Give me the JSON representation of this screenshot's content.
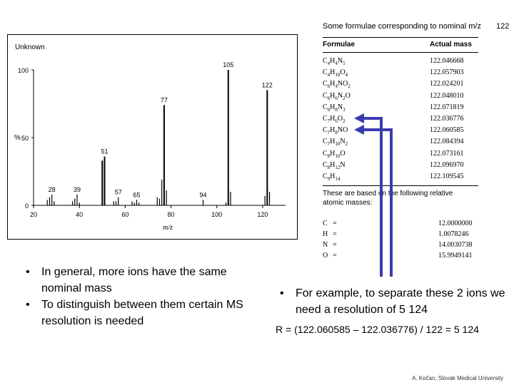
{
  "spectrum": {
    "title": "Unknown",
    "xlabel": "m/z",
    "ylabel": "%",
    "y_ticks": [
      "100",
      "50",
      "0"
    ],
    "x_ticks": [
      "20",
      "40",
      "60",
      "80",
      "100",
      "120"
    ]
  },
  "chart_data": {
    "type": "bar",
    "title": "Unknown",
    "xlabel": "m/z",
    "ylabel": "%",
    "xlim": [
      20,
      130
    ],
    "ylim": [
      0,
      100
    ],
    "peak_labels": [
      "28",
      "39",
      "51",
      "57",
      "65",
      "77",
      "94",
      "105",
      "122"
    ],
    "peaks": [
      {
        "x": 26,
        "y": 4
      },
      {
        "x": 27,
        "y": 6
      },
      {
        "x": 28,
        "y": 8
      },
      {
        "x": 29,
        "y": 3
      },
      {
        "x": 37,
        "y": 3
      },
      {
        "x": 38,
        "y": 5
      },
      {
        "x": 39,
        "y": 8
      },
      {
        "x": 40,
        "y": 2
      },
      {
        "x": 50,
        "y": 33
      },
      {
        "x": 51,
        "y": 36
      },
      {
        "x": 55,
        "y": 3
      },
      {
        "x": 56,
        "y": 3
      },
      {
        "x": 57,
        "y": 6
      },
      {
        "x": 63,
        "y": 3
      },
      {
        "x": 64,
        "y": 2
      },
      {
        "x": 65,
        "y": 4
      },
      {
        "x": 66,
        "y": 2
      },
      {
        "x": 74,
        "y": 6
      },
      {
        "x": 75,
        "y": 5
      },
      {
        "x": 76,
        "y": 19
      },
      {
        "x": 77,
        "y": 74
      },
      {
        "x": 78,
        "y": 11
      },
      {
        "x": 94,
        "y": 4
      },
      {
        "x": 104,
        "y": 2
      },
      {
        "x": 105,
        "y": 100
      },
      {
        "x": 106,
        "y": 10
      },
      {
        "x": 121,
        "y": 7
      },
      {
        "x": 122,
        "y": 85
      },
      {
        "x": 123,
        "y": 10
      }
    ]
  },
  "table": {
    "title": "Some formulae corresponding to nominal m/z",
    "title_value": "122",
    "col_formula": "Formulae",
    "col_mass": "Actual mass",
    "rows": [
      {
        "formula": "C4H4N5",
        "mass": "122.046668"
      },
      {
        "formula": "C4H10O4",
        "mass": "122.057903"
      },
      {
        "formula": "C6H4NO2",
        "mass": "122.024201"
      },
      {
        "formula": "C6H6N2O",
        "mass": "122.048010"
      },
      {
        "formula": "C6H8N3",
        "mass": "122.071819"
      },
      {
        "formula": "C7H6O2",
        "mass": "122.036776"
      },
      {
        "formula": "C7H8NO",
        "mass": "122.060585"
      },
      {
        "formula": "C7H10N2",
        "mass": "122.084394"
      },
      {
        "formula": "C8H10O",
        "mass": "122.073161"
      },
      {
        "formula": "C8H12N",
        "mass": "122.096970"
      },
      {
        "formula": "C9H14",
        "mass": "122.109545"
      }
    ],
    "note_line1": "These are based on the following relative",
    "note_line2": "atomic masses:",
    "atomic": [
      {
        "symbol": "C",
        "sign": "=",
        "mass": "12.0000000"
      },
      {
        "symbol": "H",
        "sign": "=",
        "mass": "1.0078246"
      },
      {
        "symbol": "N",
        "sign": "=",
        "mass": "14.0030738"
      },
      {
        "symbol": "O",
        "sign": "=",
        "mass": "15.9949141"
      }
    ]
  },
  "bullets_left": [
    "In general, more ions have the same nominal mass",
    "To distinguish between them certain MS resolution is needed"
  ],
  "bullet_right": "For example, to separate these 2 ions we need a resolution of 5 124",
  "formula_r": "R = (122.060585 – 122.036776) / 122 = 5 124",
  "credit": "A. Kočan, Slovak Medical University",
  "colors": {
    "arrow": "#3b3bb0"
  }
}
